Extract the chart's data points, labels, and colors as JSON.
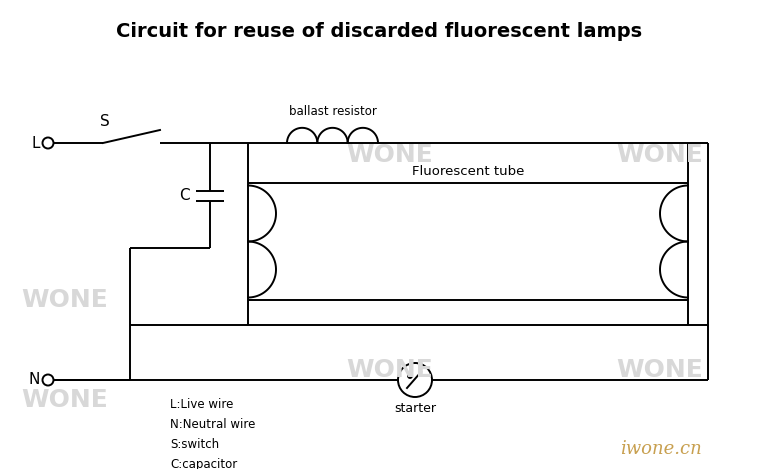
{
  "title": "Circuit for reuse of discarded fluorescent lamps",
  "title_fontsize": 14,
  "title_fontweight": "bold",
  "background_color": "#ffffff",
  "line_color": "#000000",
  "line_width": 1.4,
  "watermark_color": "#d8d8d8",
  "legend_text": "L:Live wire\nN:Neutral wire\nS:switch\nC:capacitor",
  "legend_fontsize": 8.5,
  "label_L": "L",
  "label_N": "N",
  "label_S": "S",
  "label_C": "C",
  "label_ballast": "ballast resistor",
  "label_tube": "Fluorescent tube",
  "label_starter": "starter",
  "brand_text": "iwone.cn",
  "brand_fontsize": 13,
  "brand_color": "#c8a050"
}
